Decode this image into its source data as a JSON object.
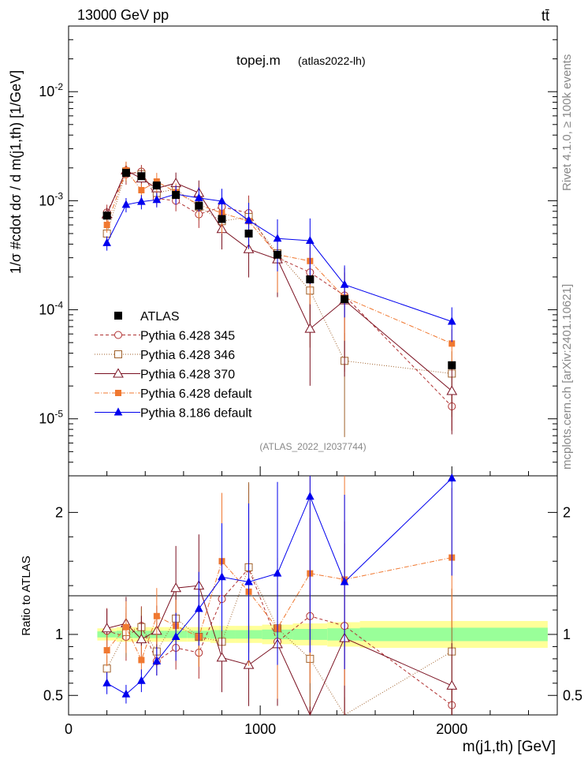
{
  "header": {
    "energy_label": "13000 GeV pp",
    "process_label": "tt̄",
    "plot_title": "topej.m",
    "plot_subtitle": "(atlas2022-lh)",
    "analysis_watermark": "(ATLAS_2022_I2037744)",
    "side_right_top": "Rivet 4.1.0, ≥ 100k events",
    "side_right_bottom": "mcplots.cern.ch [arXiv:2401.10621]"
  },
  "chart_data": {
    "type": "scatter",
    "title": "topej.m (atlas2022-lh)",
    "xlabel": "m(j1,th) [GeV]",
    "ylabel": "1/σ #cdot dσ / d m(j1,th) [1/GeV]",
    "ratio_ylabel": "Ratio to ATLAS",
    "xlim": [
      0,
      2550
    ],
    "ylim_log": [
      3e-06,
      0.04
    ],
    "ratio_ylim": [
      0.34,
      2.3
    ],
    "x_ticks": [
      "0",
      "1000",
      "2000"
    ],
    "y_ticks": [
      "10^-5",
      "10^-4",
      "10^-3",
      "10^-2"
    ],
    "ratio_ticks": [
      "0.5",
      "1",
      "2"
    ],
    "x": [
      200,
      300,
      380,
      460,
      560,
      680,
      800,
      940,
      1090,
      1260,
      1440,
      2000
    ],
    "band_edges": [
      150,
      250,
      340,
      420,
      500,
      620,
      740,
      870,
      1010,
      1170,
      1350,
      1520,
      2500
    ],
    "band_inner": [
      0.025,
      0.03,
      0.03,
      0.03,
      0.03,
      0.03,
      0.035,
      0.035,
      0.04,
      0.045,
      0.05,
      0.055
    ],
    "band_outer": [
      0.05,
      0.06,
      0.06,
      0.06,
      0.06,
      0.06,
      0.07,
      0.07,
      0.08,
      0.09,
      0.1,
      0.11
    ],
    "data": {
      "name": "ATLAS",
      "values": [
        0.00073,
        0.0018,
        0.00168,
        0.00138,
        0.00113,
        0.0009,
        0.00068,
        0.0005,
        0.00032,
        0.00019,
        0.000125,
        3.1e-05
      ]
    },
    "series": [
      {
        "name": "Pythia 6.428 345",
        "color": "#b03030",
        "marker": "open-circle",
        "dash": "4,3",
        "values": [
          0.00078,
          0.00175,
          0.00185,
          0.00105,
          0.001,
          0.00075,
          0.00088,
          0.00077,
          0.0003,
          0.00022,
          0.000135,
          1.3e-05
        ],
        "ratio": [
          1.03,
          0.98,
          1.07,
          0.78,
          0.89,
          0.85,
          1.29,
          1.54,
          0.94,
          1.15,
          1.07,
          0.42
        ],
        "err": [
          0.18,
          0.2,
          0.15,
          0.15,
          0.2,
          0.25,
          0.35,
          0.45,
          0.55,
          0.7,
          0.8,
          0.4
        ]
      },
      {
        "name": "Pythia 6.428 346",
        "color": "#a0622d",
        "marker": "open-square",
        "dash": "1,2",
        "values": [
          0.0005,
          0.00185,
          0.00175,
          0.00118,
          0.00128,
          0.00088,
          0.00065,
          0.00071,
          0.00033,
          0.00015,
          3.4e-05,
          2.6e-05
        ],
        "ratio": [
          0.72,
          1.02,
          1.06,
          0.86,
          1.13,
          0.98,
          0.94,
          1.55,
          1.05,
          0.8,
          0.27,
          0.86
        ],
        "err": [
          0.15,
          0.2,
          0.15,
          0.15,
          0.2,
          0.25,
          0.35,
          0.45,
          0.55,
          0.7,
          0.8,
          0.6
        ]
      },
      {
        "name": "Pythia 6.428 370",
        "color": "#7a1020",
        "marker": "open-triangle",
        "dash": "",
        "values": [
          0.00075,
          0.0019,
          0.0016,
          0.0013,
          0.00145,
          0.00118,
          0.00055,
          0.00036,
          0.00029,
          6.7e-05,
          0.000122,
          1.8e-05
        ],
        "ratio": [
          1.05,
          1.09,
          0.96,
          1.03,
          1.38,
          1.4,
          0.81,
          0.75,
          0.92,
          0.24,
          0.97,
          0.58
        ],
        "err": [
          0.15,
          0.2,
          0.2,
          0.2,
          0.25,
          0.3,
          0.35,
          0.45,
          0.55,
          0.7,
          0.8,
          0.6
        ]
      },
      {
        "name": "Pythia 6.428 default",
        "color": "#f07830",
        "marker": "filled-square",
        "dash": "6,2,1,2",
        "values": [
          0.0006,
          0.0019,
          0.00125,
          0.0015,
          0.0012,
          0.00092,
          0.00077,
          0.00065,
          0.00032,
          0.00028,
          0.00013,
          4.9e-05
        ],
        "ratio": [
          0.87,
          1.06,
          0.79,
          1.15,
          1.07,
          0.98,
          1.6,
          1.35,
          1.05,
          1.5,
          1.45,
          1.63
        ],
        "err": [
          0.15,
          0.2,
          0.15,
          0.2,
          0.2,
          0.25,
          0.35,
          0.45,
          0.55,
          0.6,
          0.6,
          0.35
        ]
      },
      {
        "name": "Pythia 8.186 default",
        "color": "#0000ee",
        "marker": "filled-triangle",
        "dash": "",
        "values": [
          0.00041,
          0.00092,
          0.00098,
          0.00102,
          0.00115,
          0.00106,
          0.00099,
          0.00066,
          0.00045,
          0.00043,
          0.00017,
          7.8e-05
        ],
        "ratio": [
          0.6,
          0.51,
          0.62,
          0.78,
          0.98,
          1.21,
          1.47,
          1.43,
          1.5,
          2.13,
          1.43,
          2.28
        ],
        "err": [
          0.15,
          0.15,
          0.15,
          0.15,
          0.2,
          0.25,
          0.3,
          0.45,
          0.5,
          0.6,
          0.5,
          0.35
        ]
      }
    ]
  }
}
